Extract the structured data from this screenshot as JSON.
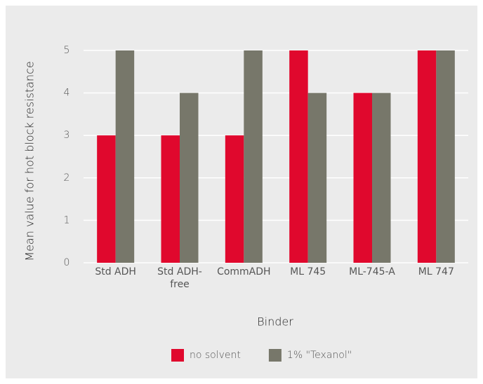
{
  "chart_data": {
    "type": "bar",
    "categories": [
      "Std ADH",
      "Std ADH-free",
      "CommADH",
      "ML 745",
      "ML-745-A",
      "ML 747"
    ],
    "series": [
      {
        "name": "no solvent",
        "color": "#e0082d",
        "values": [
          3,
          3,
          3,
          5,
          4,
          5
        ]
      },
      {
        "name": "1% \"Texanol\"",
        "color": "#77776a",
        "values": [
          5,
          4,
          5,
          4,
          4,
          5
        ]
      }
    ],
    "x_label": "Binder",
    "y_label": "Mean value for hot block resistance",
    "ylim": [
      0,
      5
    ],
    "yticks": [
      0,
      1,
      2,
      3,
      4,
      5
    ],
    "grid": true,
    "legend": "bottom"
  }
}
